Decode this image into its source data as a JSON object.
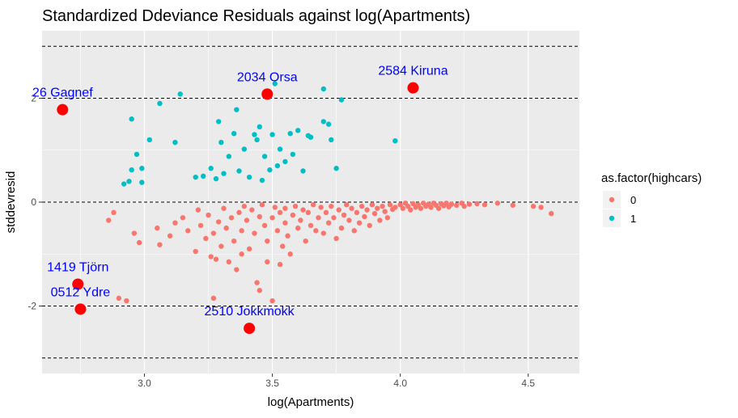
{
  "chart_data": {
    "type": "scatter",
    "title": "Standardized Ddeviance Residuals against log(Apartments)",
    "xlabel": "log(Apartments)",
    "ylabel": "stddevresid",
    "xlim": [
      2.6,
      4.7
    ],
    "ylim": [
      -3.3,
      3.3
    ],
    "x_ticks": [
      "3.0",
      "3.5",
      "4.0",
      "4.5"
    ],
    "x_tick_values": [
      3.0,
      3.5,
      4.0,
      4.5
    ],
    "y_ticks": [
      "-2",
      "0",
      "2"
    ],
    "y_tick_values": [
      -2,
      0,
      2
    ],
    "grid": true,
    "panel_background": "#ebebeb",
    "reference_lines": [
      -3,
      -2,
      0,
      2,
      3
    ],
    "legend": {
      "title": "as.factor(highcars)",
      "placement": "right",
      "entries": [
        {
          "label": "0",
          "color": "#f8766d"
        },
        {
          "label": "1",
          "color": "#00bfc4"
        }
      ]
    },
    "series": [
      {
        "name": "0",
        "color": "#f8766d",
        "points": [
          [
            2.86,
            -0.35
          ],
          [
            2.88,
            -0.2
          ],
          [
            2.9,
            -1.85
          ],
          [
            2.93,
            -1.9
          ],
          [
            2.96,
            -0.6
          ],
          [
            2.98,
            -0.78
          ],
          [
            3.05,
            -0.5
          ],
          [
            3.06,
            -0.82
          ],
          [
            3.1,
            -0.65
          ],
          [
            3.12,
            -0.4
          ],
          [
            3.15,
            -0.3
          ],
          [
            3.17,
            -0.55
          ],
          [
            3.2,
            -0.95
          ],
          [
            3.21,
            -0.15
          ],
          [
            3.22,
            -0.45
          ],
          [
            3.24,
            -0.7
          ],
          [
            3.25,
            -0.25
          ],
          [
            3.26,
            -1.05
          ],
          [
            3.27,
            -0.6
          ],
          [
            3.27,
            -1.85
          ],
          [
            3.28,
            -1.1
          ],
          [
            3.29,
            -0.38
          ],
          [
            3.3,
            -0.85
          ],
          [
            3.31,
            -0.12
          ],
          [
            3.32,
            -0.5
          ],
          [
            3.33,
            -1.15
          ],
          [
            3.34,
            -0.3
          ],
          [
            3.35,
            -0.75
          ],
          [
            3.36,
            -1.3
          ],
          [
            3.37,
            -0.2
          ],
          [
            3.38,
            -0.55
          ],
          [
            3.38,
            -1.0
          ],
          [
            3.39,
            -0.08
          ],
          [
            3.4,
            -0.35
          ],
          [
            3.41,
            -0.9
          ],
          [
            3.42,
            -0.15
          ],
          [
            3.43,
            -0.6
          ],
          [
            3.44,
            -1.55
          ],
          [
            3.45,
            -1.7
          ],
          [
            3.45,
            -0.28
          ],
          [
            3.46,
            -0.05
          ],
          [
            3.47,
            -0.45
          ],
          [
            3.48,
            -1.15
          ],
          [
            3.48,
            -0.75
          ],
          [
            3.5,
            -0.3
          ],
          [
            3.5,
            -1.9
          ],
          [
            3.51,
            -0.1
          ],
          [
            3.52,
            -0.55
          ],
          [
            3.53,
            -1.2
          ],
          [
            3.53,
            -0.2
          ],
          [
            3.54,
            -0.85
          ],
          [
            3.55,
            -0.4
          ],
          [
            3.55,
            -0.12
          ],
          [
            3.56,
            -0.65
          ],
          [
            3.57,
            -1.0
          ],
          [
            3.58,
            -0.25
          ],
          [
            3.59,
            -0.08
          ],
          [
            3.6,
            -0.5
          ],
          [
            3.61,
            -0.35
          ],
          [
            3.62,
            -0.15
          ],
          [
            3.63,
            -0.75
          ],
          [
            3.64,
            -0.2
          ],
          [
            3.65,
            -0.45
          ],
          [
            3.66,
            -0.05
          ],
          [
            3.67,
            -0.55
          ],
          [
            3.68,
            -0.3
          ],
          [
            3.69,
            -0.1
          ],
          [
            3.7,
            -0.6
          ],
          [
            3.71,
            -0.2
          ],
          [
            3.72,
            -0.4
          ],
          [
            3.73,
            -0.08
          ],
          [
            3.74,
            -0.3
          ],
          [
            3.75,
            -0.7
          ],
          [
            3.76,
            -0.15
          ],
          [
            3.77,
            -0.5
          ],
          [
            3.78,
            -0.25
          ],
          [
            3.79,
            -0.05
          ],
          [
            3.8,
            -0.35
          ],
          [
            3.81,
            -0.12
          ],
          [
            3.82,
            -0.55
          ],
          [
            3.83,
            -0.2
          ],
          [
            3.84,
            -0.4
          ],
          [
            3.85,
            -0.08
          ],
          [
            3.86,
            -0.28
          ],
          [
            3.87,
            -0.15
          ],
          [
            3.88,
            -0.45
          ],
          [
            3.89,
            -0.05
          ],
          [
            3.9,
            -0.22
          ],
          [
            3.91,
            -0.12
          ],
          [
            3.92,
            -0.35
          ],
          [
            3.93,
            -0.08
          ],
          [
            3.94,
            -0.18
          ],
          [
            3.95,
            -0.3
          ],
          [
            3.96,
            -0.05
          ],
          [
            3.97,
            -0.14
          ],
          [
            3.98,
            -0.1
          ],
          [
            4.0,
            -0.05
          ],
          [
            4.01,
            -0.12
          ],
          [
            4.02,
            -0.02
          ],
          [
            4.03,
            -0.08
          ],
          [
            4.04,
            -0.15
          ],
          [
            4.05,
            -0.03
          ],
          [
            4.06,
            -0.1
          ],
          [
            4.07,
            -0.05
          ],
          [
            4.08,
            -0.12
          ],
          [
            4.09,
            -0.02
          ],
          [
            4.1,
            -0.08
          ],
          [
            4.11,
            -0.04
          ],
          [
            4.12,
            -0.1
          ],
          [
            4.13,
            -0.02
          ],
          [
            4.14,
            -0.06
          ],
          [
            4.15,
            -0.12
          ],
          [
            4.16,
            -0.03
          ],
          [
            4.17,
            -0.07
          ],
          [
            4.18,
            -0.02
          ],
          [
            4.19,
            -0.09
          ],
          [
            4.2,
            -0.04
          ],
          [
            4.22,
            -0.06
          ],
          [
            4.24,
            -0.02
          ],
          [
            4.25,
            -0.08
          ],
          [
            4.27,
            -0.04
          ],
          [
            4.3,
            -0.03
          ],
          [
            4.33,
            -0.05
          ],
          [
            4.38,
            -0.02
          ],
          [
            4.44,
            -0.06
          ],
          [
            4.52,
            -0.08
          ],
          [
            4.55,
            -0.1
          ],
          [
            4.59,
            -0.22
          ]
        ]
      },
      {
        "name": "1",
        "color": "#00bfc4",
        "points": [
          [
            2.94,
            0.4
          ],
          [
            2.95,
            1.6
          ],
          [
            2.95,
            0.62
          ],
          [
            2.97,
            0.92
          ],
          [
            2.99,
            0.65
          ],
          [
            2.99,
            0.38
          ],
          [
            3.02,
            1.2
          ],
          [
            3.06,
            1.9
          ],
          [
            3.12,
            1.15
          ],
          [
            3.14,
            2.08
          ],
          [
            3.2,
            0.48
          ],
          [
            3.23,
            0.5
          ],
          [
            3.26,
            0.65
          ],
          [
            3.28,
            0.45
          ],
          [
            3.29,
            1.55
          ],
          [
            3.3,
            1.15
          ],
          [
            3.31,
            0.55
          ],
          [
            3.33,
            0.88
          ],
          [
            3.35,
            1.32
          ],
          [
            3.36,
            1.78
          ],
          [
            3.37,
            0.6
          ],
          [
            3.39,
            1.02
          ],
          [
            3.41,
            0.48
          ],
          [
            3.43,
            1.3
          ],
          [
            3.44,
            1.2
          ],
          [
            3.45,
            1.45
          ],
          [
            3.46,
            0.42
          ],
          [
            3.47,
            0.88
          ],
          [
            3.49,
            0.62
          ],
          [
            3.5,
            1.3
          ],
          [
            3.51,
            2.28
          ],
          [
            3.52,
            0.7
          ],
          [
            3.53,
            1.02
          ],
          [
            3.55,
            0.78
          ],
          [
            3.57,
            1.32
          ],
          [
            3.58,
            0.92
          ],
          [
            3.6,
            1.38
          ],
          [
            3.62,
            0.6
          ],
          [
            3.64,
            1.28
          ],
          [
            3.65,
            1.25
          ],
          [
            3.7,
            1.55
          ],
          [
            3.7,
            2.18
          ],
          [
            3.72,
            1.5
          ],
          [
            3.73,
            1.2
          ],
          [
            3.75,
            0.65
          ],
          [
            3.77,
            1.97
          ],
          [
            3.98,
            1.18
          ],
          [
            2.92,
            0.35
          ]
        ]
      }
    ],
    "highlighted": {
      "color": "#ff0000",
      "points": [
        {
          "x": 2.68,
          "y": 1.78,
          "label": "26 Gagnef"
        },
        {
          "x": 3.48,
          "y": 2.08,
          "label": "2034 Orsa"
        },
        {
          "x": 4.05,
          "y": 2.2,
          "label": "2584 Kiruna"
        },
        {
          "x": 2.74,
          "y": -1.58,
          "label": "1419 Tjörn"
        },
        {
          "x": 2.75,
          "y": -2.06,
          "label": "0512 Ydre"
        },
        {
          "x": 3.41,
          "y": -2.43,
          "label": "2510 Jokkmokk"
        }
      ],
      "label_color": "#0000ff"
    }
  }
}
